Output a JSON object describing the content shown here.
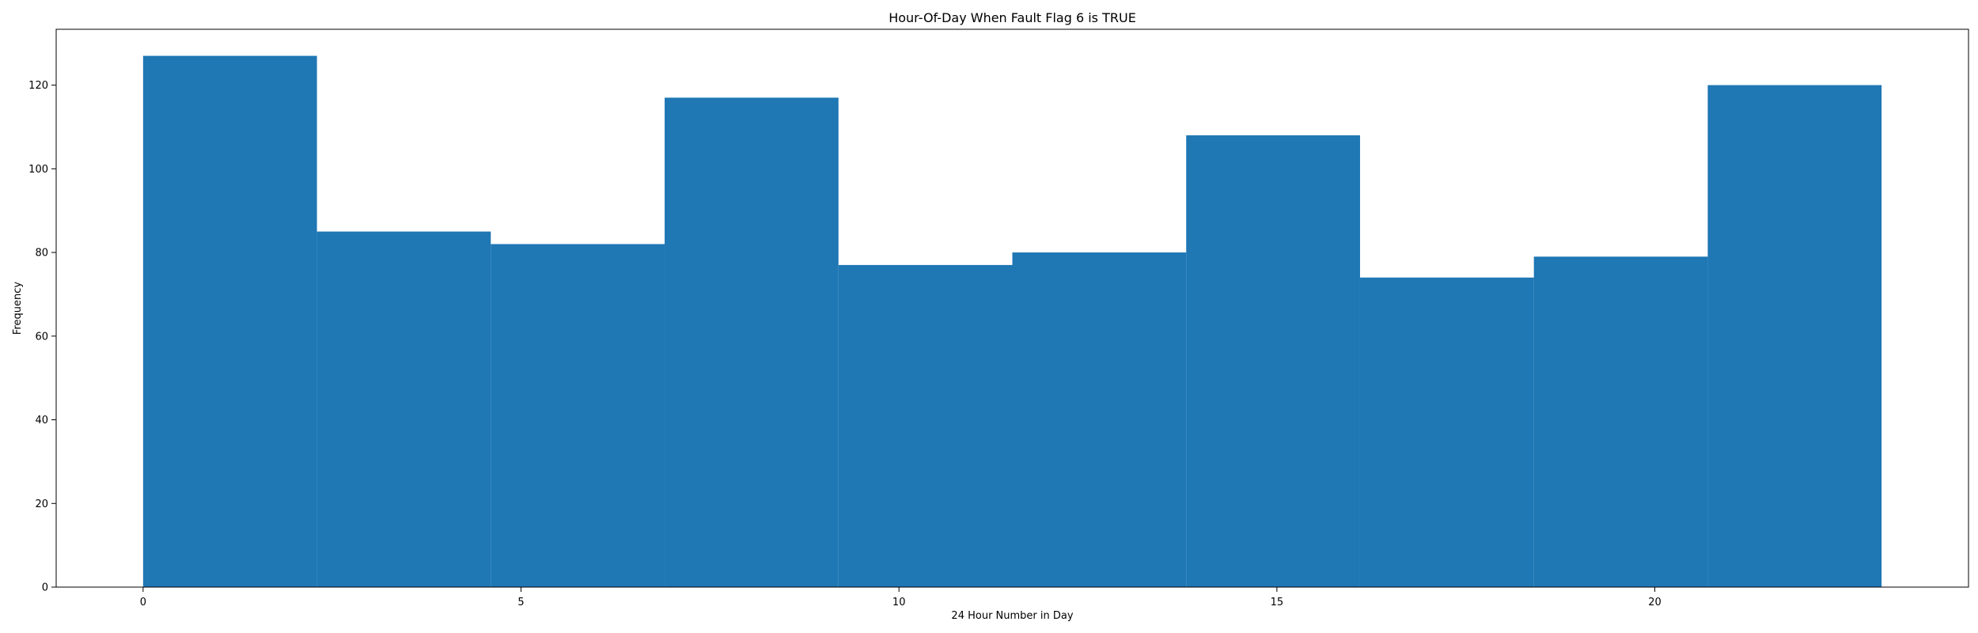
{
  "chart_data": {
    "type": "bar",
    "title": "Hour-Of-Day When Fault Flag 6 is TRUE",
    "xlabel": "24 Hour Number in Day",
    "ylabel": "Frequency",
    "bin_edges": [
      0,
      2.3,
      4.6,
      6.9,
      9.2,
      11.5,
      13.8,
      16.1,
      18.4,
      20.7,
      23
    ],
    "values": [
      127,
      85,
      82,
      117,
      77,
      80,
      108,
      74,
      79,
      120
    ],
    "xlim": [
      -1.15,
      24.15
    ],
    "ylim": [
      0,
      133.35
    ],
    "xticks": [
      0,
      5,
      10,
      15,
      20
    ],
    "yticks": [
      0,
      20,
      40,
      60,
      80,
      100,
      120
    ],
    "bar_color": "#1f77b4",
    "grid": false
  }
}
